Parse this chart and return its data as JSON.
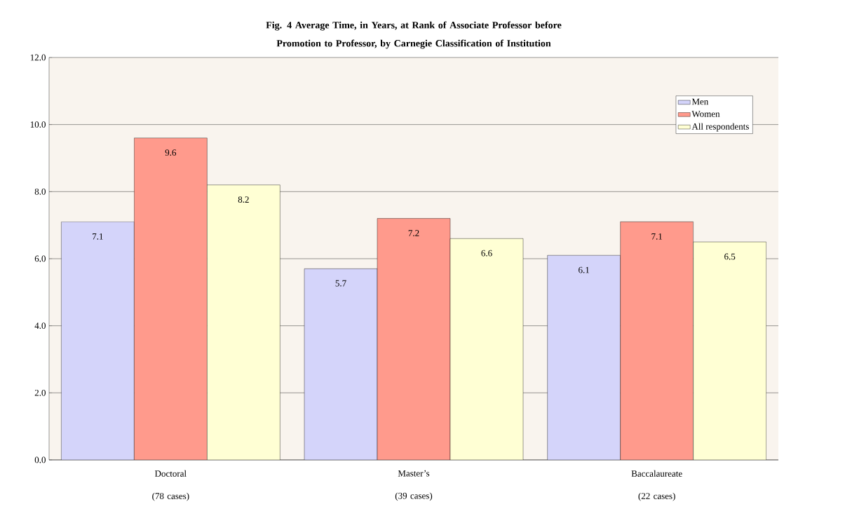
{
  "chart_data": {
    "type": "bar",
    "title": "Fig. 4 Average Time, in Years, at Rank of Associate Professor before Promotion to Professor, by Carnegie Classification of Institution",
    "categories": [
      "Doctoral (78 cases)",
      "Master’s (39 cases)",
      "Baccalaureate (22 cases)"
    ],
    "series": [
      {
        "name": "Men",
        "color": "#d4d4fa",
        "values": [
          7.1,
          5.7,
          6.1
        ]
      },
      {
        "name": "Women",
        "color": "#ff9a8c",
        "values": [
          9.6,
          7.2,
          7.1
        ]
      },
      {
        "name": "All respondents",
        "color": "#ffffd4",
        "values": [
          8.2,
          6.6,
          6.5
        ]
      }
    ],
    "ylim": [
      0,
      12
    ],
    "yticks": [
      {
        "value": 0,
        "label": "0.0"
      },
      {
        "value": 2,
        "label": "2.0"
      },
      {
        "value": 4,
        "label": "4.0"
      },
      {
        "value": 6,
        "label": "6.0"
      },
      {
        "value": 8,
        "label": "8.0"
      },
      {
        "value": 10,
        "label": "10.0"
      },
      {
        "value": 12,
        "label": "12.0"
      }
    ],
    "grid": "y",
    "legend": "top right",
    "data_labels": true
  }
}
